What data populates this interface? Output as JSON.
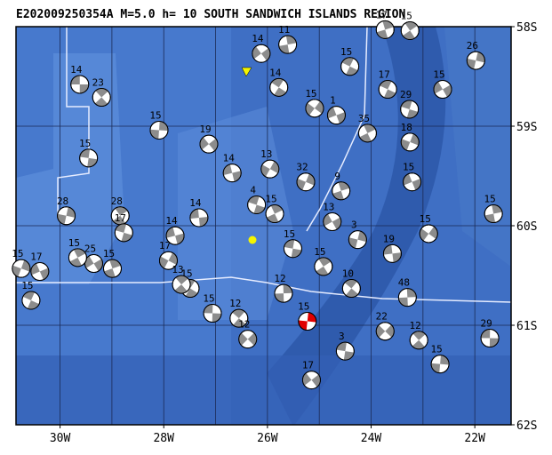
{
  "title": "E202009250354A  M=5.0  h=  10  SOUTH SANDWICH ISLANDS REGION",
  "map": {
    "lon_range": [
      -30.85,
      -21.3
    ],
    "lat_range": [
      -58,
      -62
    ],
    "lon_ticks": [
      {
        "value": -30,
        "label": "30W"
      },
      {
        "value": -28,
        "label": "28W"
      },
      {
        "value": -26,
        "label": "26W"
      },
      {
        "value": -24,
        "label": "24W"
      },
      {
        "value": -22,
        "label": "22W"
      }
    ],
    "lat_ticks": [
      {
        "value": -58,
        "label": "58S"
      },
      {
        "value": -59,
        "label": "59S"
      },
      {
        "value": -60,
        "label": "60S"
      },
      {
        "value": -61,
        "label": "61S"
      },
      {
        "value": -62,
        "label": "62S"
      }
    ],
    "mechanism_color": "#8c8c8c",
    "events": [
      {
        "lon": -29.62,
        "lat": -58.58,
        "depth": "14"
      },
      {
        "lon": -29.2,
        "lat": -58.71,
        "depth": "23"
      },
      {
        "lon": -28.09,
        "lat": -59.04,
        "depth": "15"
      },
      {
        "lon": -27.13,
        "lat": -59.18,
        "depth": "19"
      },
      {
        "lon": -29.45,
        "lat": -59.32,
        "depth": "15"
      },
      {
        "lon": -28.84,
        "lat": -59.9,
        "depth": "28"
      },
      {
        "lon": -29.88,
        "lat": -59.9,
        "depth": "28"
      },
      {
        "lon": -29.35,
        "lat": -60.38,
        "depth": "25"
      },
      {
        "lon": -28.77,
        "lat": -60.07,
        "depth": "17"
      },
      {
        "lon": -29.66,
        "lat": -60.32,
        "depth": "15"
      },
      {
        "lon": -30.75,
        "lat": -60.43,
        "depth": "15"
      },
      {
        "lon": -30.39,
        "lat": -60.46,
        "depth": "17"
      },
      {
        "lon": -30.56,
        "lat": -60.75,
        "depth": "15"
      },
      {
        "lon": -28.99,
        "lat": -60.43,
        "depth": "15"
      },
      {
        "lon": -27.91,
        "lat": -60.35,
        "depth": "17"
      },
      {
        "lon": -27.78,
        "lat": -60.1,
        "depth": "14"
      },
      {
        "lon": -27.49,
        "lat": -60.63,
        "depth": "15"
      },
      {
        "lon": -21.64,
        "lat": -59.88,
        "depth": "15"
      },
      {
        "lon": -22.89,
        "lat": -60.08,
        "depth": "15"
      },
      {
        "lon": -23.59,
        "lat": -60.28,
        "depth": "19"
      },
      {
        "lon": -24.38,
        "lat": -60.63,
        "depth": "10"
      },
      {
        "lon": -23.3,
        "lat": -60.72,
        "depth": "48"
      },
      {
        "lon": -23.73,
        "lat": -61.06,
        "depth": "22"
      },
      {
        "lon": -21.71,
        "lat": -61.13,
        "depth": "29"
      },
      {
        "lon": -23.08,
        "lat": -61.15,
        "depth": "12"
      },
      {
        "lon": -22.67,
        "lat": -61.39,
        "depth": "15"
      },
      {
        "lon": -25.15,
        "lat": -61.55,
        "depth": "17"
      },
      {
        "lon": -24.5,
        "lat": -61.26,
        "depth": "3"
      },
      {
        "lon": -23.25,
        "lat": -58.04,
        "depth": "15"
      },
      {
        "lon": -21.98,
        "lat": -58.34,
        "depth": "26"
      },
      {
        "lon": -22.62,
        "lat": -58.63,
        "depth": "15"
      },
      {
        "lon": -23.26,
        "lat": -58.83,
        "depth": "29"
      },
      {
        "lon": -24.07,
        "lat": -59.07,
        "depth": "35"
      },
      {
        "lon": -23.25,
        "lat": -59.16,
        "depth": "18"
      },
      {
        "lon": -23.21,
        "lat": -59.56,
        "depth": "15"
      },
      {
        "lon": -23.68,
        "lat": -58.63,
        "depth": "17"
      },
      {
        "lon": -24.58,
        "lat": -59.65,
        "depth": "9"
      },
      {
        "lon": -25.95,
        "lat": -59.43,
        "depth": "13"
      },
      {
        "lon": -26.68,
        "lat": -59.47,
        "depth": "14"
      },
      {
        "lon": -25.78,
        "lat": -58.61,
        "depth": "14"
      },
      {
        "lon": -25.61,
        "lat": -58.18,
        "depth": "11"
      },
      {
        "lon": -25.09,
        "lat": -58.82,
        "depth": "15"
      },
      {
        "lon": -27.32,
        "lat": -59.92,
        "depth": "14"
      },
      {
        "lon": -26.55,
        "lat": -60.93,
        "depth": "12"
      },
      {
        "lon": -25.69,
        "lat": -60.68,
        "depth": "12"
      },
      {
        "lon": -26.38,
        "lat": -61.14,
        "depth": "12"
      },
      {
        "lon": -27.06,
        "lat": -60.88,
        "depth": "15"
      },
      {
        "lon": -27.66,
        "lat": -60.59,
        "depth": "13"
      },
      {
        "lon": -25.23,
        "lat": -60.96,
        "depth": "15",
        "color": "#e00000"
      },
      {
        "lon": -26.12,
        "lat": -58.27,
        "depth": "14"
      },
      {
        "lon": -25.51,
        "lat": -60.23,
        "depth": "15"
      },
      {
        "lon": -24.92,
        "lat": -60.41,
        "depth": "15"
      },
      {
        "lon": -24.26,
        "lat": -60.14,
        "depth": "3"
      },
      {
        "lon": -24.75,
        "lat": -59.96,
        "depth": "13"
      },
      {
        "lon": -26.21,
        "lat": -59.79,
        "depth": "4"
      },
      {
        "lon": -25.86,
        "lat": -59.88,
        "depth": "15"
      },
      {
        "lon": -25.26,
        "lat": -59.56,
        "depth": "32"
      },
      {
        "lon": -24.67,
        "lat": -58.89,
        "depth": "1"
      },
      {
        "lon": -24.41,
        "lat": -58.4,
        "depth": "15"
      },
      {
        "lon": -23.73,
        "lat": -58.03,
        "depth": "17"
      }
    ]
  }
}
